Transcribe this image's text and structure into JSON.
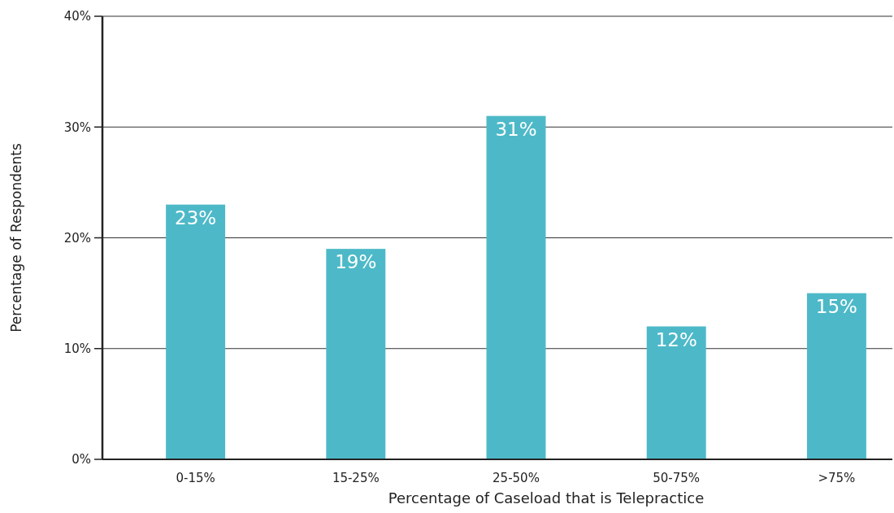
{
  "chart_data": {
    "type": "bar",
    "xlabel": "Percentage of Caseload that is Telepractice",
    "ylabel": "Percentage of Respondents",
    "categories": [
      "0-15%",
      "15-25%",
      "25-50%",
      "50-75%",
      ">75%"
    ],
    "values": [
      23,
      19,
      31,
      12,
      15
    ],
    "color": "#4db9c8",
    "ylim": [
      0,
      40
    ],
    "yticks": [
      {
        "value": 0,
        "label": "0%"
      },
      {
        "value": 10,
        "label": "10%"
      },
      {
        "value": 20,
        "label": "20%"
      },
      {
        "value": 30,
        "label": "30%"
      },
      {
        "value": 40,
        "label": "40%"
      }
    ],
    "grid": "y",
    "value_labels": [
      "23%",
      "19%",
      "31%",
      "12%",
      "15%"
    ]
  }
}
